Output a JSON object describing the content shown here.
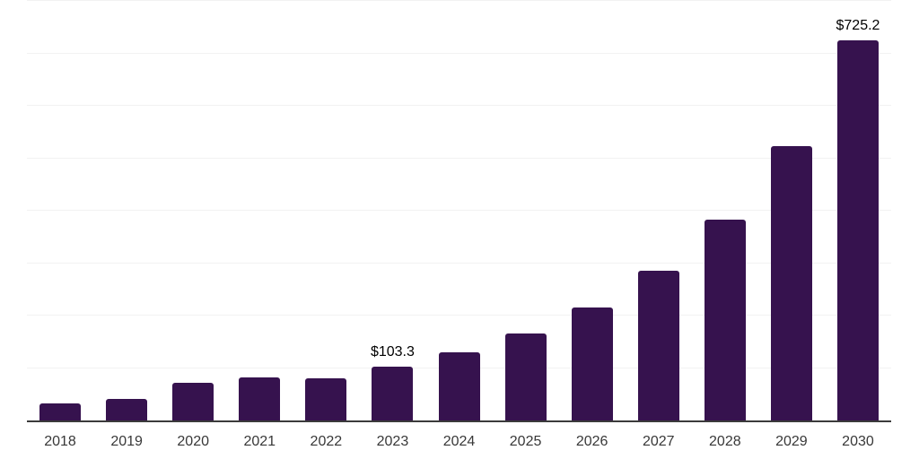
{
  "chart_data": {
    "type": "bar",
    "title": "",
    "xlabel": "",
    "ylabel": "",
    "categories": [
      "2018",
      "2019",
      "2020",
      "2021",
      "2022",
      "2023",
      "2024",
      "2025",
      "2026",
      "2027",
      "2028",
      "2029",
      "2030"
    ],
    "values": [
      32.8,
      40.2,
      71.7,
      81.4,
      80.7,
      103.3,
      129.6,
      165.5,
      216.1,
      285.4,
      382.1,
      523.2,
      725.2
    ],
    "value_labels": [
      {
        "category": "2023",
        "text": "$103.3"
      },
      {
        "category": "2030",
        "text": "$725.2"
      }
    ],
    "ylim": [
      0,
      800
    ],
    "gridline_step": 100,
    "grid": "horizontal",
    "legend": "none",
    "y_axis_tick_labels": "none",
    "colors": {
      "bar": "#36124e",
      "gridline": "#f2f2f2",
      "axis_line": "#3b3b3b",
      "tick_label": "#383838",
      "value_label": "#000000",
      "background": "#ffffff"
    }
  }
}
